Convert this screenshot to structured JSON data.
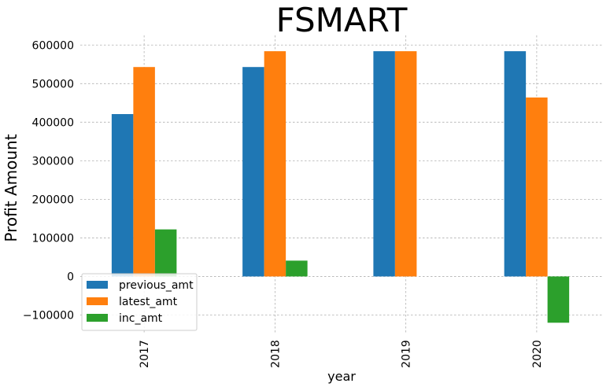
{
  "chart_data": {
    "type": "bar",
    "title": "FSMART",
    "xlabel": "year",
    "ylabel": "Profit Amount",
    "categories": [
      "2017",
      "2018",
      "2019",
      "2020"
    ],
    "series": [
      {
        "name": "previous_amt",
        "color": "#1f77b4",
        "values": [
          421000,
          543000,
          584000,
          584000
        ]
      },
      {
        "name": "latest_amt",
        "color": "#ff7f0e",
        "values": [
          543000,
          584000,
          584000,
          464000
        ]
      },
      {
        "name": "inc_amt",
        "color": "#2ca02c",
        "values": [
          122000,
          41000,
          0,
          -120000
        ]
      }
    ],
    "yticks": [
      -100000,
      0,
      100000,
      200000,
      300000,
      400000,
      500000,
      600000
    ],
    "ylim": [
      -150000,
      625000
    ],
    "grid": true,
    "legend_position": "lower-left"
  }
}
